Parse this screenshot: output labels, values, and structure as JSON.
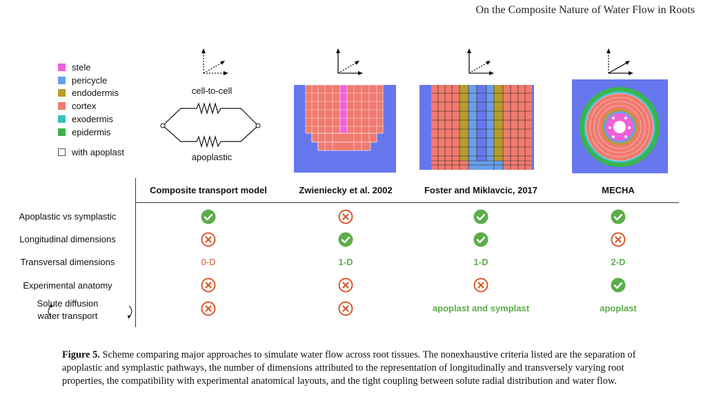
{
  "header": {
    "running_title": "On the Composite Nature of Water Flow in Roots"
  },
  "legend": {
    "items": [
      {
        "label": "stele",
        "color": "#f060d8"
      },
      {
        "label": "pericycle",
        "color": "#6a9fe8"
      },
      {
        "label": "endodermis",
        "color": "#b89c2c"
      },
      {
        "label": "cortex",
        "color": "#f07a70"
      },
      {
        "label": "exodermis",
        "color": "#3cc0c0"
      },
      {
        "label": "epidermis",
        "color": "#39b54a"
      }
    ],
    "apoplast_label": "with apoplast"
  },
  "circuit": {
    "top_label": "cell-to-cell",
    "bottom_label": "apoplastic"
  },
  "columns": [
    "Composite transport model",
    "Zwieniecky et al. 2002",
    "Foster and Miklavcic, 2017",
    "MECHA"
  ],
  "rows": [
    {
      "label": "Apoplastic vs symplastic",
      "cells": [
        {
          "type": "check"
        },
        {
          "type": "cross"
        },
        {
          "type": "check"
        },
        {
          "type": "check"
        }
      ]
    },
    {
      "label": "Longitudinal dimensions",
      "cells": [
        {
          "type": "cross"
        },
        {
          "type": "check"
        },
        {
          "type": "check"
        },
        {
          "type": "cross"
        }
      ]
    },
    {
      "label": "Transversal dimensions",
      "cells": [
        {
          "type": "text",
          "text": "0-D",
          "style": "orange"
        },
        {
          "type": "text",
          "text": "1-D",
          "style": "green"
        },
        {
          "type": "text",
          "text": "1-D",
          "style": "green"
        },
        {
          "type": "text",
          "text": "2-D",
          "style": "green"
        }
      ]
    },
    {
      "label": "Experimental anatomy",
      "cells": [
        {
          "type": "cross"
        },
        {
          "type": "cross"
        },
        {
          "type": "cross"
        },
        {
          "type": "check"
        }
      ]
    },
    {
      "label_line1": "Solute diffusion",
      "label_line2": "water transport",
      "cells": [
        {
          "type": "cross"
        },
        {
          "type": "cross"
        },
        {
          "type": "text",
          "text": "apoplast and symplast",
          "style": "green"
        },
        {
          "type": "text",
          "text": "apoplast",
          "style": "green"
        }
      ]
    }
  ],
  "caption": {
    "label": "Figure 5.",
    "text": " Scheme comparing major approaches to simulate water flow across root tissues. The nonexhaustive criteria listed are the separation of apoplastic and symplastic pathways, the number of dimensions attributed to the representation of longitudinally and transversely varying root properties, the compatibility with experimental anatomical layouts, and the tight coupling between solute radial distribution and water flow."
  },
  "colors": {
    "check": "#5cad4a",
    "cross": "#d9572b",
    "background_blue": "#6677ee"
  }
}
